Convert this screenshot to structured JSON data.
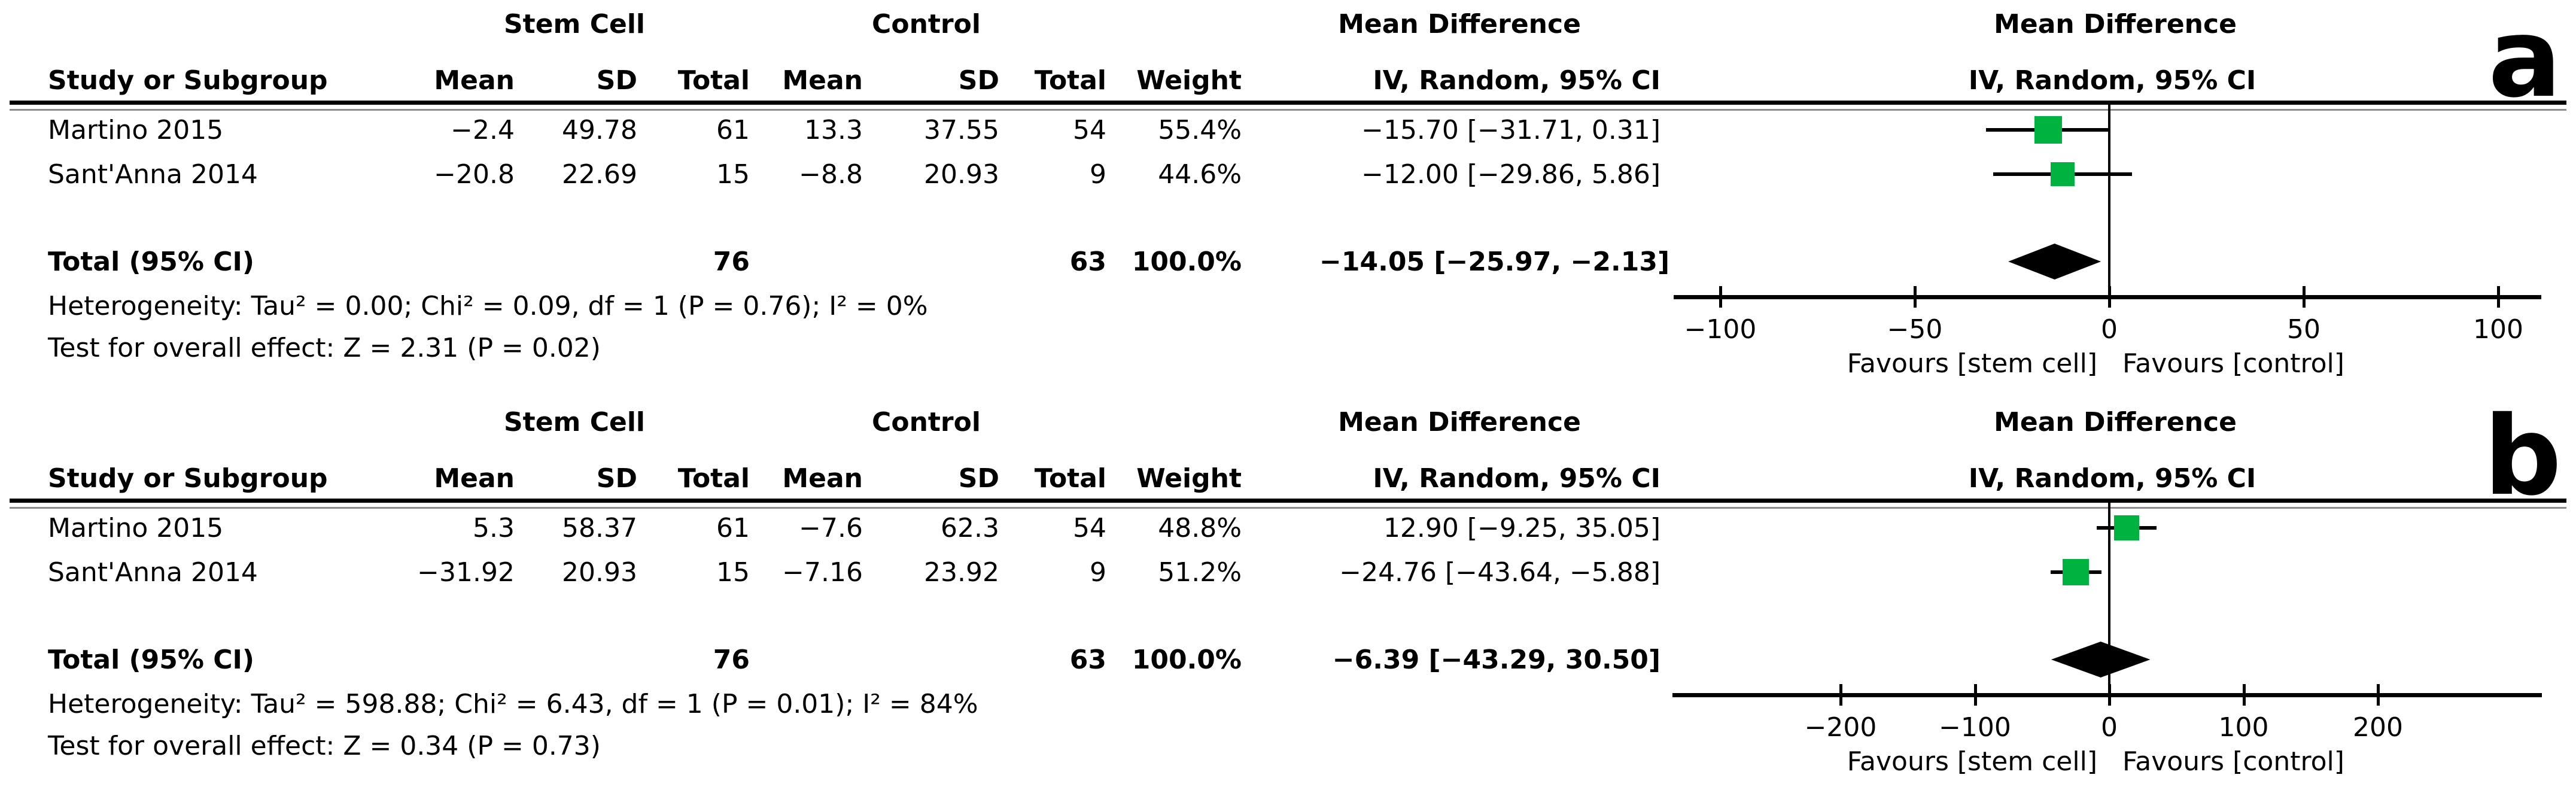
{
  "figure": {
    "type": "forest-plot-meta-analysis",
    "panel_labels": [
      "a",
      "b"
    ]
  },
  "colors": {
    "effect_square": "#00b341",
    "ink": "#000000",
    "rule_secondary": "#8c8c8c",
    "background": "#ffffff"
  },
  "panels": [
    {
      "label": "a",
      "group1": "Stem Cell",
      "group2": "Control",
      "effect_header": "Mean Difference",
      "columns": {
        "study": "Study or Subgroup",
        "mean": "Mean",
        "sd": "SD",
        "total": "Total",
        "weight": "Weight",
        "method": "IV, Random, 95% CI"
      },
      "studies": [
        {
          "name": "Martino 2015",
          "mean": "−2.4",
          "sd": "49.78",
          "total": "61",
          "c_mean": "13.3",
          "c_sd": "37.55",
          "c_total": "54",
          "weight": "55.4%",
          "ci_text": "−15.70 [−31.71, 0.31]"
        },
        {
          "name": "Sant'Anna 2014",
          "mean": "−20.8",
          "sd": "22.69",
          "total": "15",
          "c_mean": "−8.8",
          "c_sd": "20.93",
          "c_total": "9",
          "weight": "44.6%",
          "ci_text": "−12.00 [−29.86, 5.86]"
        }
      ],
      "total": {
        "label": "Total (95% CI)",
        "total": "76",
        "c_total": "63",
        "weight": "100.0%",
        "ci_text": "−14.05 [−25.97, −2.13]"
      },
      "heterogeneity": "Heterogeneity: Tau² = 0.00; Chi² = 0.09, df = 1 (P = 0.76); I² = 0%",
      "overall_effect": "Test for overall effect: Z = 2.31 (P = 0.02)"
    },
    {
      "label": "b",
      "group1": "Stem Cell",
      "group2": "Control",
      "effect_header": "Mean Difference",
      "columns": {
        "study": "Study or Subgroup",
        "mean": "Mean",
        "sd": "SD",
        "total": "Total",
        "weight": "Weight",
        "method": "IV, Random, 95% CI"
      },
      "studies": [
        {
          "name": "Martino 2015",
          "mean": "5.3",
          "sd": "58.37",
          "total": "61",
          "c_mean": "−7.6",
          "c_sd": "62.3",
          "c_total": "54",
          "weight": "48.8%",
          "ci_text": "12.90 [−9.25, 35.05]"
        },
        {
          "name": "Sant'Anna 2014",
          "mean": "−31.92",
          "sd": "20.93",
          "total": "15",
          "c_mean": "−7.16",
          "c_sd": "23.92",
          "c_total": "9",
          "weight": "51.2%",
          "ci_text": "−24.76 [−43.64, −5.88]"
        }
      ],
      "total": {
        "label": "Total (95% CI)",
        "total": "76",
        "c_total": "63",
        "weight": "100.0%",
        "ci_text": "−6.39 [−43.29, 30.50]"
      },
      "heterogeneity": "Heterogeneity: Tau² = 598.88; Chi² = 6.43, df = 1 (P = 0.01); I² = 84%",
      "overall_effect": "Test for overall effect: Z = 0.34 (P = 0.73)"
    }
  ],
  "chart_data": [
    {
      "type": "forest",
      "panel": "a",
      "effect_measure": "Mean Difference, IV, Random, 95% CI",
      "studies": [
        {
          "name": "Martino 2015",
          "md": -15.7,
          "ci": [
            -31.71,
            0.31
          ],
          "weight": 55.4
        },
        {
          "name": "Sant'Anna 2014",
          "md": -12.0,
          "ci": [
            -29.86,
            5.86
          ],
          "weight": 44.6
        }
      ],
      "total": {
        "md": -14.05,
        "ci": [
          -25.97,
          -2.13
        ]
      },
      "axis_ticks": [
        -100,
        -50,
        0,
        50,
        100
      ],
      "xlim": [
        -112,
        111
      ],
      "favours": [
        "Favours [stem cell]",
        "Favours [control]"
      ]
    },
    {
      "type": "forest",
      "panel": "b",
      "effect_measure": "Mean Difference, IV, Random, 95% CI",
      "studies": [
        {
          "name": "Martino 2015",
          "md": 12.9,
          "ci": [
            -9.25,
            35.05
          ],
          "weight": 48.8
        },
        {
          "name": "Sant'Anna 2014",
          "md": -24.76,
          "ci": [
            -43.64,
            -5.88
          ],
          "weight": 51.2
        }
      ],
      "total": {
        "md": -6.39,
        "ci": [
          -43.29,
          30.5
        ]
      },
      "axis_ticks": [
        -200,
        -100,
        0,
        100,
        200
      ],
      "xlim": [
        -325,
        322
      ],
      "favours": [
        "Favours [stem cell]",
        "Favours [control]"
      ]
    }
  ]
}
